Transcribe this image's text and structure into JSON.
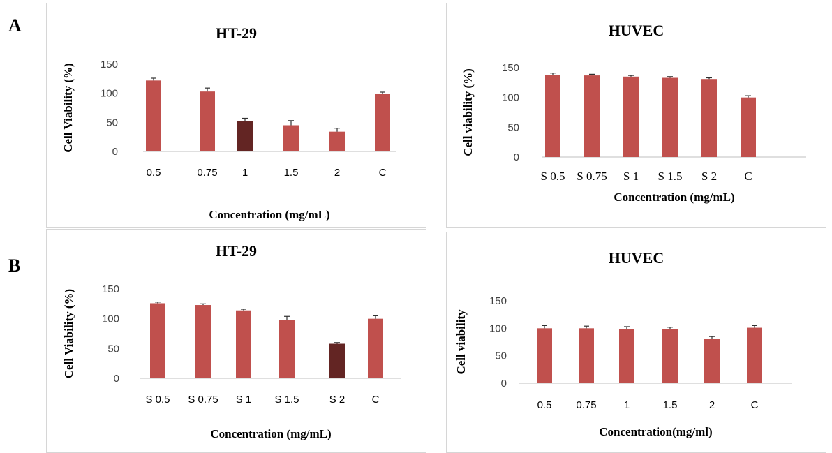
{
  "panel_labels": [
    "A",
    "B"
  ],
  "colors": {
    "bar": "#c0504d",
    "bar_highlight": "#632523",
    "error": "#303030",
    "axis": "#bfbfbf"
  },
  "chart_data": [
    {
      "type": "bar",
      "title": "HT-29",
      "xlabel": "Concentration (mg/mL)",
      "ylabel": "Cell Viability  (%)",
      "categories": [
        "0.5",
        "0.75",
        "1",
        "1.5",
        "2",
        "C"
      ],
      "values": [
        122,
        103,
        52,
        45,
        34,
        99
      ],
      "errors": [
        4,
        6,
        5,
        8,
        6,
        3
      ],
      "highlight": [
        false,
        false,
        true,
        false,
        false,
        false
      ],
      "yticks": [
        0,
        50,
        100,
        150
      ],
      "ylim": [
        0,
        150
      ],
      "grid": false
    },
    {
      "type": "bar",
      "title": "HUVEC",
      "xlabel": "Concentration (mg/mL)",
      "ylabel": "Cell viability (%)",
      "categories": [
        "S 0.5",
        "S 0.75",
        "S 1",
        "S 1.5",
        "S 2",
        "C"
      ],
      "values": [
        138,
        137,
        135,
        133,
        131,
        100
      ],
      "errors": [
        3,
        2,
        2,
        2,
        2,
        3
      ],
      "highlight": [
        false,
        false,
        false,
        false,
        false,
        false
      ],
      "yticks": [
        0,
        50,
        100,
        150
      ],
      "ylim": [
        0,
        150
      ],
      "grid": false
    },
    {
      "type": "bar",
      "title": "HT-29",
      "xlabel": "Concentration (mg/mL)",
      "ylabel": "Cell Viability (%)",
      "categories": [
        "S 0.5",
        "S 0.75",
        "S 1",
        "S 1.5",
        "S 2",
        "C"
      ],
      "values": [
        126,
        123,
        114,
        98,
        58,
        100
      ],
      "errors": [
        2,
        2,
        2,
        6,
        2,
        5
      ],
      "highlight": [
        false,
        false,
        false,
        false,
        true,
        false
      ],
      "yticks": [
        0,
        50,
        100,
        150
      ],
      "ylim": [
        0,
        150
      ],
      "grid": false
    },
    {
      "type": "bar",
      "title": "HUVEC",
      "xlabel": "Concentration(mg/ml)",
      "ylabel": "Cell  viability",
      "categories": [
        "0.5",
        "0.75",
        "1",
        "1.5",
        "2",
        "C"
      ],
      "values": [
        100,
        100,
        98,
        98,
        81,
        101
      ],
      "errors": [
        5,
        4,
        5,
        4,
        4,
        4
      ],
      "highlight": [
        false,
        false,
        false,
        false,
        false,
        false
      ],
      "yticks": [
        0,
        50,
        100,
        150
      ],
      "ylim": [
        0,
        150
      ],
      "grid": false
    }
  ]
}
